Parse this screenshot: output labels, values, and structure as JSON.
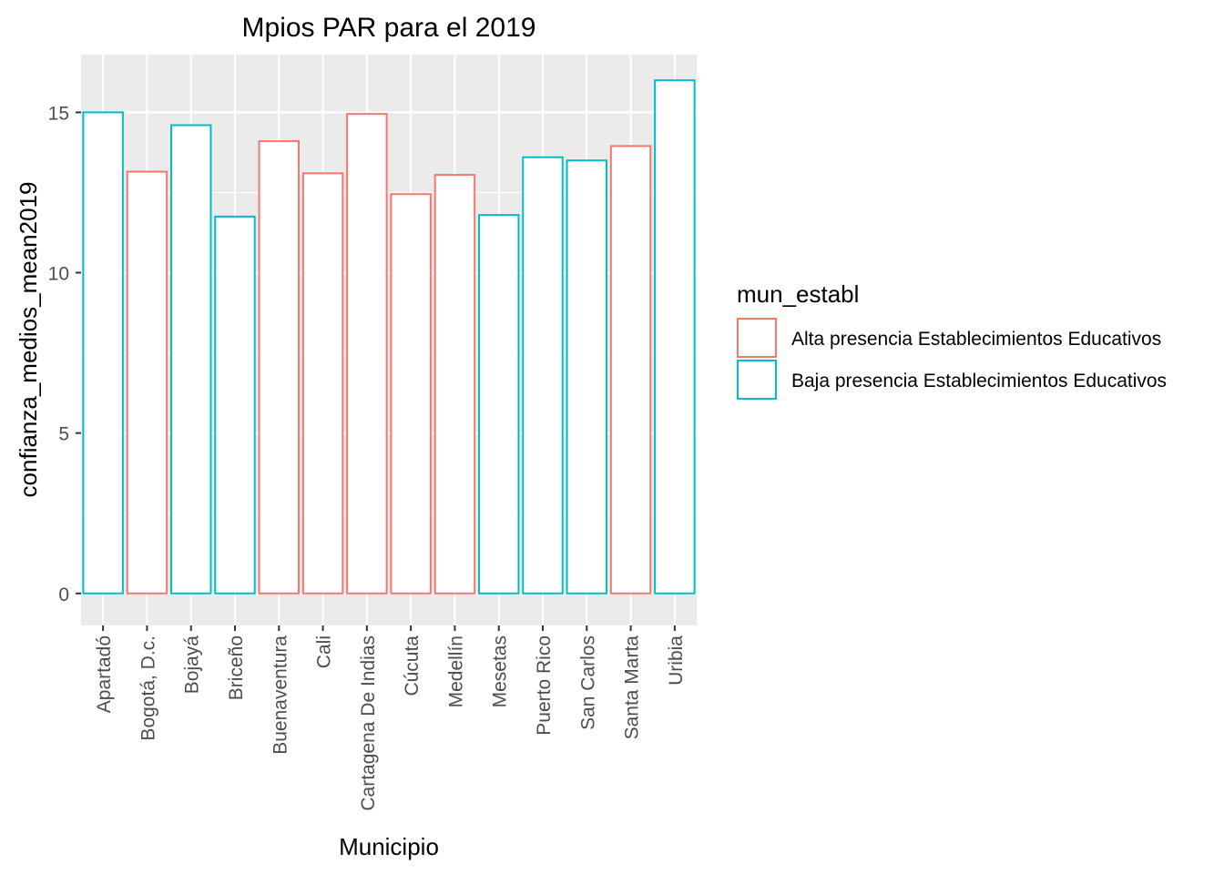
{
  "chart_data": {
    "type": "bar",
    "title": "Mpios PAR para el 2019",
    "xlabel": "Municipio",
    "ylabel": "confianza_medios_mean2019",
    "ylim": [
      -1.0,
      16.8
    ],
    "yticks": [
      0,
      5,
      10,
      15
    ],
    "categories": [
      "Apartadó",
      "Bogotá, D.c.",
      "Bojayá",
      "Briceño",
      "Buenaventura",
      "Cali",
      "Cartagena De Indias",
      "Cúcuta",
      "Medellín",
      "Mesetas",
      "Puerto Rico",
      "San Carlos",
      "Santa Marta",
      "Uribia"
    ],
    "values": [
      15.0,
      13.15,
      14.6,
      11.75,
      14.1,
      13.1,
      14.95,
      12.45,
      13.05,
      11.8,
      13.6,
      13.5,
      13.95,
      16.0
    ],
    "groups": [
      "Baja presencia Establecimientos Educativos",
      "Alta presencia Establecimientos Educativos",
      "Baja presencia Establecimientos Educativos",
      "Baja presencia Establecimientos Educativos",
      "Alta presencia Establecimientos Educativos",
      "Alta presencia Establecimientos Educativos",
      "Alta presencia Establecimientos Educativos",
      "Alta presencia Establecimientos Educativos",
      "Alta presencia Establecimientos Educativos",
      "Baja presencia Establecimientos Educativos",
      "Baja presencia Establecimientos Educativos",
      "Baja presencia Establecimientos Educativos",
      "Alta presencia Establecimientos Educativos",
      "Baja presencia Establecimientos Educativos"
    ],
    "legend": {
      "title": "mun_establ",
      "position": "right",
      "entries": [
        {
          "name": "Alta presencia Establecimientos Educativos",
          "color": "#F8766D"
        },
        {
          "name": "Baja presencia Establecimientos Educativos",
          "color": "#00BFC4"
        }
      ]
    },
    "grid": true,
    "panel_background": "#EBEBEB",
    "bar_fill": "#FFFFFF"
  }
}
